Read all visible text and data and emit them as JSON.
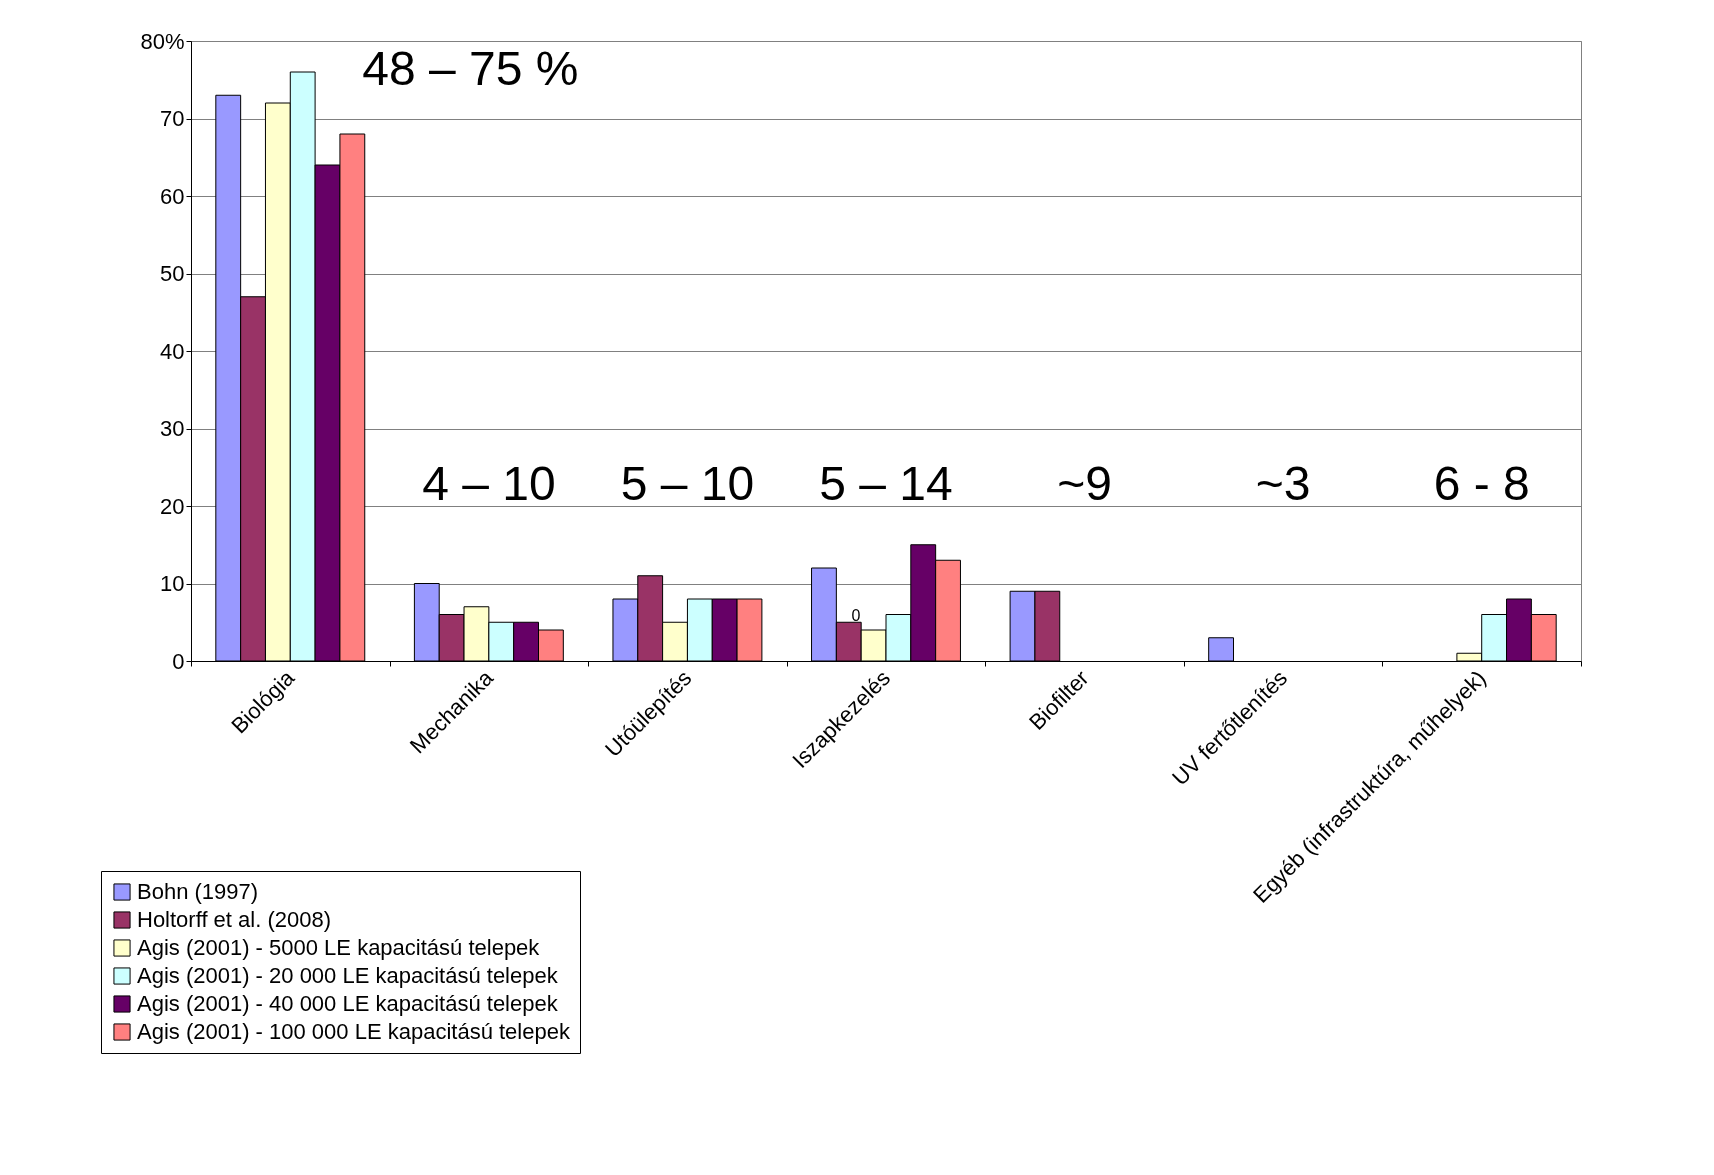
{
  "chart_data": {
    "type": "bar",
    "categories": [
      "Biológia",
      "Mechanika",
      "Utóülepítés",
      "Iszapkezelés",
      "Biofilter",
      "UV fertőtlenítés",
      "Egyéb (infrastruktúra, műhelyek)"
    ],
    "series": [
      {
        "name": "Bohn (1997)",
        "color": "#9999ff",
        "values": [
          73,
          10,
          8,
          12,
          9,
          3,
          null
        ]
      },
      {
        "name": "Holtorff et al. (2008)",
        "color": "#993366",
        "values": [
          47,
          6,
          11,
          5,
          9,
          null,
          null
        ]
      },
      {
        "name": "Agis (2001) - 5000 LE kapacitású telepek",
        "color": "#ffffcc",
        "values": [
          72,
          7,
          5,
          4,
          null,
          null,
          1
        ]
      },
      {
        "name": "Agis (2001) - 20 000 LE kapacitású telepek",
        "color": "#ccffff",
        "values": [
          76,
          5,
          8,
          6,
          null,
          null,
          6
        ]
      },
      {
        "name": "Agis (2001) - 40 000 LE kapacitású telepek",
        "color": "#660066",
        "values": [
          64,
          5,
          8,
          15,
          null,
          null,
          8
        ]
      },
      {
        "name": "Agis (2001) - 100 000 LE kapacitású telepek",
        "color": "#ff8080",
        "values": [
          68,
          4,
          8,
          13,
          null,
          null,
          6
        ]
      }
    ],
    "ylim": [
      0,
      80
    ],
    "yticks": [
      0,
      10,
      20,
      30,
      40,
      50,
      60,
      70,
      {
        "value": 80,
        "label": "80%"
      }
    ],
    "grid": "y",
    "legend": "bottom left",
    "annotations": [
      "48 – 75 %",
      "4 – 10",
      "5 – 10",
      "5 – 14",
      "~9",
      "~3",
      "6 - 8",
      "0"
    ]
  }
}
